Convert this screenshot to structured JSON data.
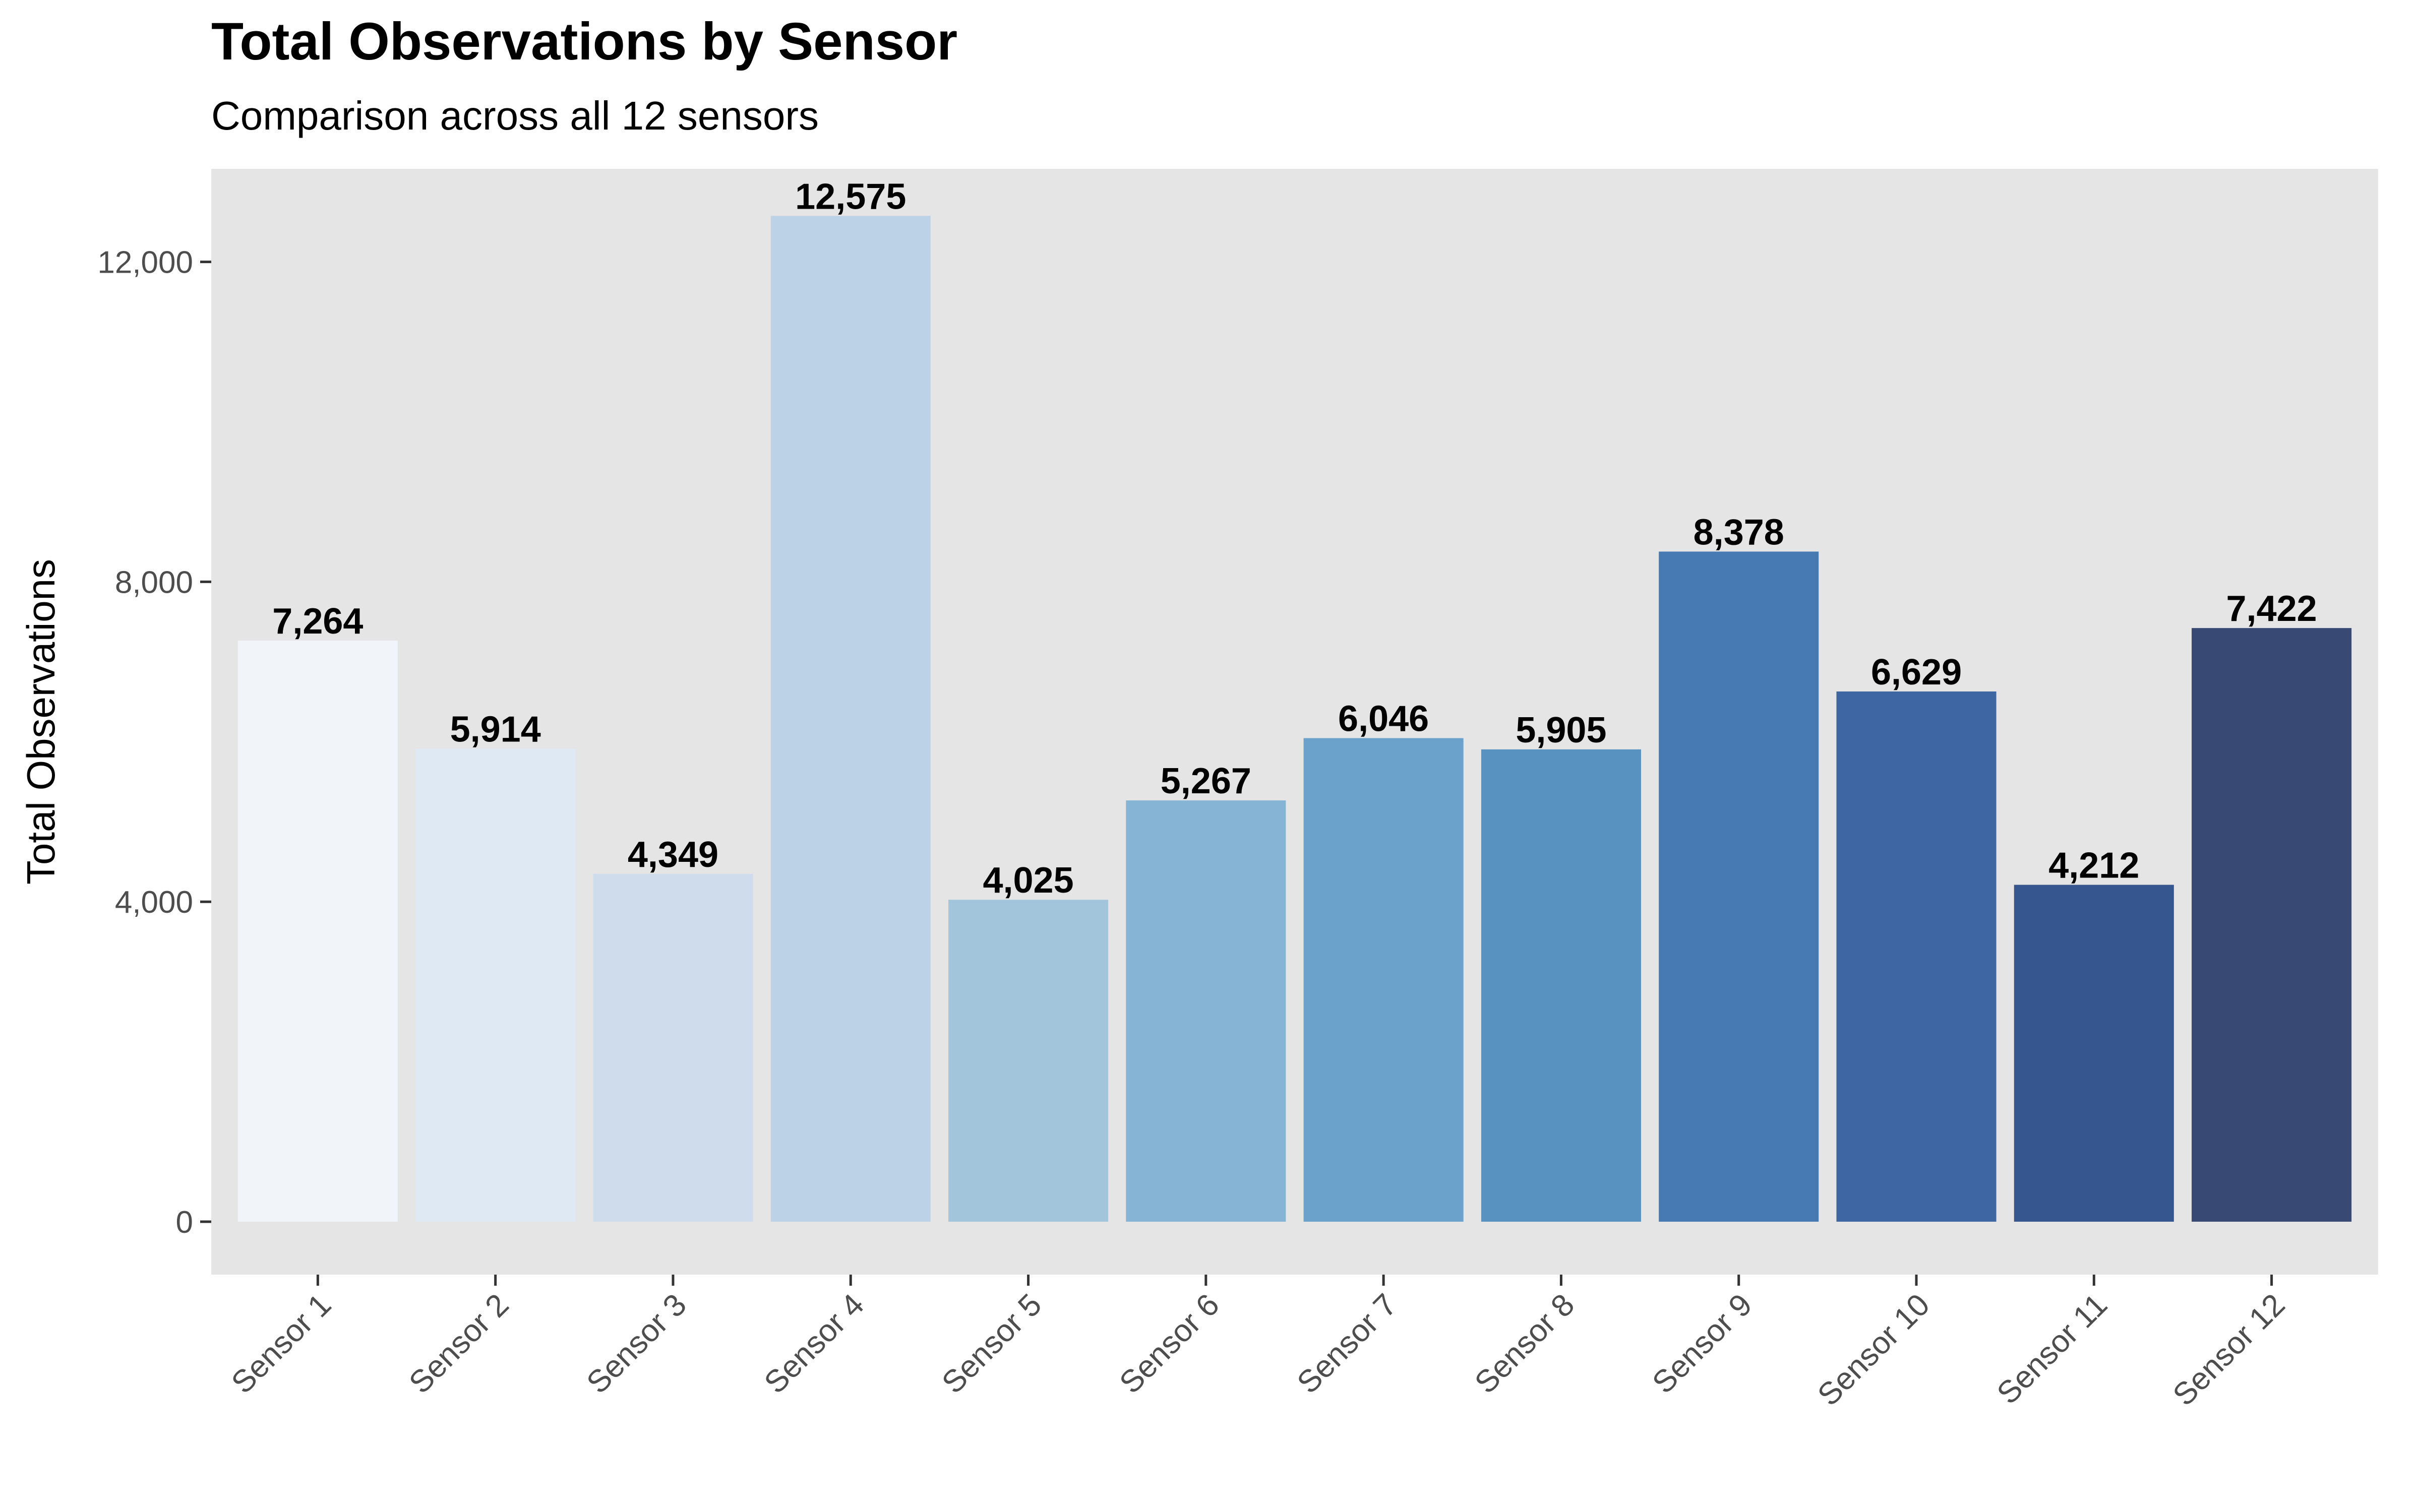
{
  "chart_data": {
    "type": "bar",
    "title": "Total Observations by Sensor",
    "subtitle": "Comparison across all 12 sensors",
    "xlabel": "",
    "ylabel": "Total Observations",
    "categories": [
      "Sensor 1",
      "Sensor 2",
      "Sensor 3",
      "Sensor 4",
      "Sensor 5",
      "Sensor 6",
      "Sensor 7",
      "Sensor 8",
      "Sensor 9",
      "Sensor 10",
      "Sensor 11",
      "Sensor 12"
    ],
    "values": [
      7264,
      5914,
      4349,
      12575,
      4025,
      5267,
      6046,
      5905,
      8378,
      6629,
      4212,
      7422
    ],
    "value_labels": [
      "7,264",
      "5,914",
      "4,349",
      "12,575",
      "4,025",
      "5,267",
      "6,046",
      "5,905",
      "8,378",
      "6,629",
      "4,212",
      "7,422"
    ],
    "bar_colors": [
      "#f1f5fa",
      "#dfe9f4",
      "#cedcec",
      "#bcd2e7",
      "#a2c5dc",
      "#85b4d4",
      "#6aa2cb",
      "#5892c1",
      "#4779b3",
      "#3e66a2",
      "#36568f",
      "#384a73"
    ],
    "ylim": [
      0,
      13000
    ],
    "yticks": [
      0,
      4000,
      8000,
      12000
    ],
    "ytick_labels": [
      "0",
      "4,000",
      "8,000",
      "12,000"
    ],
    "grid": false,
    "legend": "none",
    "panel_background": "#e5e5e5",
    "tick_color": "#333333"
  }
}
